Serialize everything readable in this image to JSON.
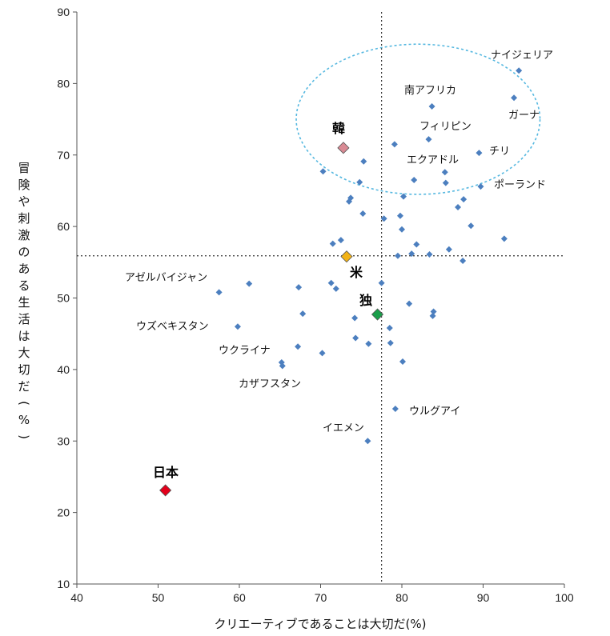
{
  "chart_data": {
    "type": "scatter",
    "xlabel": "クリエーティブであることは大切だ(%)",
    "ylabel": "冒険や刺激のある生活は大切だ(%)",
    "xlim": [
      40,
      100
    ],
    "ylim": [
      10,
      90
    ],
    "xticks": [
      "40",
      "50",
      "60",
      "70",
      "80",
      "90",
      "100"
    ],
    "yticks": [
      "10",
      "20",
      "30",
      "40",
      "50",
      "60",
      "70",
      "80",
      "90"
    ],
    "reference_lines": {
      "x": 77.5,
      "y": 55.9
    },
    "grid": false,
    "highlight_ellipse": {
      "cx": 82,
      "cy": 75,
      "rx": 15,
      "ry": 10.5,
      "color": "#56b8e0"
    },
    "points": [
      {
        "x": 57.5,
        "y": 50.8
      },
      {
        "x": 61.2,
        "y": 52.0
      },
      {
        "x": 59.8,
        "y": 46.0
      },
      {
        "x": 65.2,
        "y": 41.0
      },
      {
        "x": 65.3,
        "y": 40.5
      },
      {
        "x": 67.2,
        "y": 43.2
      },
      {
        "x": 67.3,
        "y": 51.5
      },
      {
        "x": 67.8,
        "y": 47.8
      },
      {
        "x": 70.2,
        "y": 42.3
      },
      {
        "x": 70.3,
        "y": 67.7
      },
      {
        "x": 71.3,
        "y": 52.1
      },
      {
        "x": 71.5,
        "y": 57.6
      },
      {
        "x": 71.9,
        "y": 51.3
      },
      {
        "x": 72.5,
        "y": 58.1
      },
      {
        "x": 73.5,
        "y": 63.5
      },
      {
        "x": 73.7,
        "y": 64.0
      },
      {
        "x": 74.2,
        "y": 47.2
      },
      {
        "x": 74.3,
        "y": 44.4
      },
      {
        "x": 74.8,
        "y": 66.2
      },
      {
        "x": 75.2,
        "y": 61.8
      },
      {
        "x": 75.3,
        "y": 69.1
      },
      {
        "x": 75.9,
        "y": 43.6
      },
      {
        "x": 77.5,
        "y": 52.1
      },
      {
        "x": 77.8,
        "y": 61.1
      },
      {
        "x": 78.5,
        "y": 45.8
      },
      {
        "x": 78.6,
        "y": 43.7
      },
      {
        "x": 79.1,
        "y": 71.5
      },
      {
        "x": 79.2,
        "y": 34.5
      },
      {
        "x": 79.5,
        "y": 55.9
      },
      {
        "x": 79.8,
        "y": 61.5
      },
      {
        "x": 80.0,
        "y": 59.6
      },
      {
        "x": 80.1,
        "y": 41.1
      },
      {
        "x": 80.2,
        "y": 64.2
      },
      {
        "x": 80.9,
        "y": 49.2
      },
      {
        "x": 81.2,
        "y": 56.2
      },
      {
        "x": 81.5,
        "y": 66.5
      },
      {
        "x": 81.8,
        "y": 57.5
      },
      {
        "x": 83.3,
        "y": 72.2
      },
      {
        "x": 83.4,
        "y": 56.1
      },
      {
        "x": 83.7,
        "y": 76.8
      },
      {
        "x": 83.8,
        "y": 47.5
      },
      {
        "x": 83.9,
        "y": 48.1
      },
      {
        "x": 85.3,
        "y": 67.6
      },
      {
        "x": 85.4,
        "y": 66.1
      },
      {
        "x": 85.8,
        "y": 56.8
      },
      {
        "x": 86.9,
        "y": 62.7
      },
      {
        "x": 87.6,
        "y": 63.8
      },
      {
        "x": 87.5,
        "y": 55.2
      },
      {
        "x": 88.5,
        "y": 60.1
      },
      {
        "x": 89.5,
        "y": 70.3
      },
      {
        "x": 89.7,
        "y": 65.6
      },
      {
        "x": 92.6,
        "y": 58.3
      },
      {
        "x": 93.8,
        "y": 78.0
      },
      {
        "x": 94.4,
        "y": 81.8
      },
      {
        "x": 75.8,
        "y": 30.0
      }
    ],
    "highlighted": [
      {
        "name": "日本",
        "x": 50.9,
        "y": 23.1,
        "color": "#e3001b",
        "label_color": "#e3001b"
      },
      {
        "name": "韓",
        "x": 72.8,
        "y": 71.0,
        "color": "#d98a94",
        "label_color": "#d98a94"
      },
      {
        "name": "米",
        "x": 73.2,
        "y": 55.8,
        "color": "#f2b215",
        "label_color": "#f2b215"
      },
      {
        "name": "独",
        "x": 77.0,
        "y": 47.7,
        "color": "#1a9e4a",
        "label_color": "#1a9e4a"
      }
    ],
    "annotations": [
      "ナイジェリア",
      "南アフリカ",
      "ガーナ",
      "フィリピン",
      "チリ",
      "エクアドル",
      "ポーランド",
      "アゼルバイジャン",
      "ウズベキスタン",
      "ウクライナ",
      "カザフスタン",
      "ウルグアイ",
      "イエメン"
    ]
  },
  "colors": {
    "point": "#4c7fbf",
    "axis": "#555555"
  }
}
